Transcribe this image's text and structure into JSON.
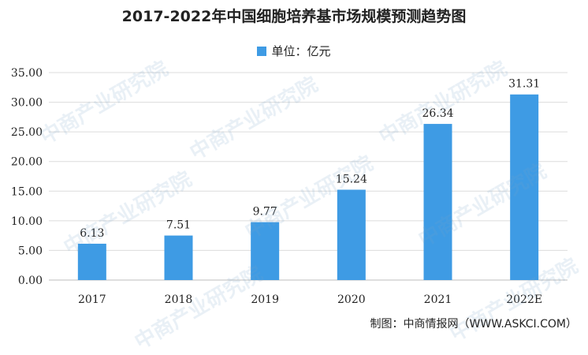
{
  "chart_data": {
    "type": "bar",
    "title": "2017-2022年中国细胞培养基市场规模预测趋势图",
    "legend": "单位：亿元",
    "categories": [
      "2017",
      "2018",
      "2019",
      "2020",
      "2021",
      "2022E"
    ],
    "values": [
      6.13,
      7.51,
      9.77,
      15.24,
      26.34,
      31.31
    ],
    "value_labels": [
      "6.13",
      "7.51",
      "9.77",
      "15.24",
      "26.34",
      "31.31"
    ],
    "yticks": [
      "0.00",
      "5.00",
      "10.00",
      "15.00",
      "20.00",
      "25.00",
      "30.00",
      "35.00"
    ],
    "ylim": [
      0,
      35
    ],
    "grid": true,
    "legend_position": "top-center",
    "bar_color": "#3e9be4"
  },
  "source": "制图：中商情报网（WWW.ASKCI.COM）",
  "watermark": "中商产业研究院"
}
